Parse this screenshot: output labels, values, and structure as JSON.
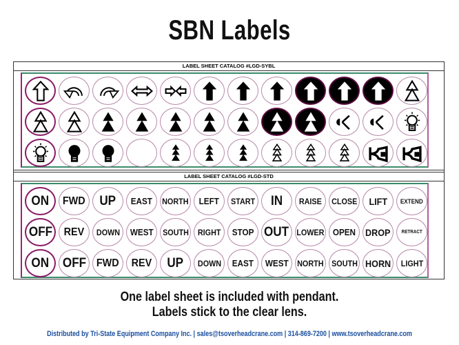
{
  "title": "SBN Labels",
  "sheets": [
    {
      "header": "LABEL SHEET CATALOG #LGD-SYBL",
      "rows": [
        [
          "arrow-up-outline",
          "rotate-ccw",
          "rotate-cw",
          "double-arrow-horizontal",
          "arrows-inward",
          "arrow-up-solid",
          "arrow-up-solid",
          "arrow-up-solid",
          "arrow-up-inverted",
          "arrow-up-inverted",
          "arrow-up-inverted",
          "double-triangle-outline"
        ],
        [
          "double-triangle-outline",
          "double-triangle-outline",
          "double-triangle-solid",
          "double-triangle-solid",
          "double-triangle-solid",
          "double-triangle-solid",
          "double-triangle-solid",
          "double-triangle-inverted",
          "double-triangle-inverted",
          "signal",
          "signal",
          "light-outline"
        ],
        [
          "light-outline",
          "light-solid",
          "light-solid",
          "blank",
          "triple-triangle-solid",
          "triple-triangle-solid",
          "triple-triangle-solid",
          "triple-triangle-outline",
          "triple-triangle-outline",
          "triple-triangle-outline",
          "horn",
          "horn"
        ]
      ]
    },
    {
      "header": "LABEL SHEET CATALOG #LGD-STD",
      "rows": [
        [
          "ON",
          "FWD",
          "UP",
          "EAST",
          "NORTH",
          "LEFT",
          "START",
          "IN",
          "RAISE",
          "CLOSE",
          "LIFT",
          "EXTEND"
        ],
        [
          "OFF",
          "REV",
          "DOWN",
          "WEST",
          "SOUTH",
          "RIGHT",
          "STOP",
          "OUT",
          "LOWER",
          "OPEN",
          "DROP",
          "RETRACT"
        ],
        [
          "ON",
          "OFF",
          "FWD",
          "REV",
          "UP",
          "DOWN",
          "EAST",
          "WEST",
          "NORTH",
          "SOUTH",
          "HORN",
          "LIGHT"
        ]
      ]
    }
  ],
  "caption_line1": "One label sheet is included with pendant.",
  "caption_line2": "Labels stick to the clear lens.",
  "footer": "Distributed by Tri-State Equipment Company Inc.  |  sales@tsoverheadcrane.com  |  314-869-7200  |  www.tsoverheadcrane.com",
  "colors": {
    "sheet_border_green": "#3a8a6a",
    "sheet_border_magenta": "#a0206e",
    "circle_border": "#b88aaa",
    "footer_blue": "#1a4e9e"
  }
}
